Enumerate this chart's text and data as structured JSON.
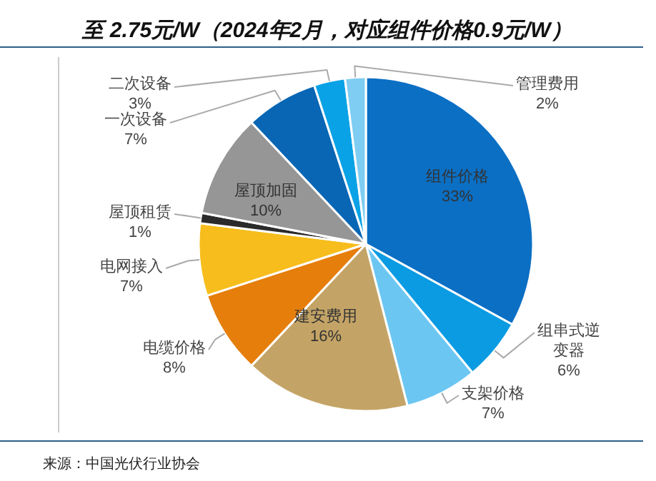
{
  "chart_data": {
    "type": "pie",
    "title": "至 2.75元/W（2024年2月，对应组件价格0.9元/W）",
    "categories": [
      "组件价格",
      "组串式逆变器",
      "支架价格",
      "建安费用",
      "电缆价格",
      "电网接入",
      "屋顶租赁",
      "屋顶加固",
      "一次设备",
      "二次设备",
      "管理费用"
    ],
    "values": [
      33,
      6,
      7,
      16,
      8,
      7,
      1,
      10,
      7,
      3,
      2
    ],
    "colors": [
      "#0b6fc4",
      "#0a9be3",
      "#6cc6f2",
      "#c4a466",
      "#e67e0c",
      "#f7bd1c",
      "#2b2b2b",
      "#969696",
      "#0866b4",
      "#0aa2e6",
      "#7fcdf2"
    ],
    "value_labels": [
      "33%",
      "6%",
      "7%",
      "16%",
      "8%",
      "7%",
      "1%",
      "10%",
      "7%",
      "3%",
      "2%"
    ],
    "annotations": [
      "来源：中国光伏行业协会"
    ]
  }
}
